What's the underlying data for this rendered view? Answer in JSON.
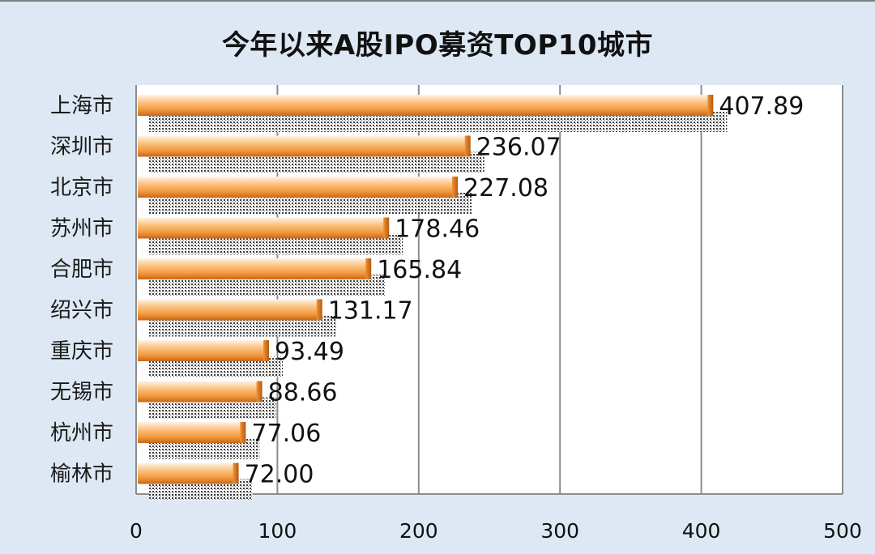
{
  "chart_data": {
    "type": "bar",
    "orientation": "horizontal",
    "title": "今年以来A股IPO募资TOP10城市",
    "categories": [
      "上海市",
      "深圳市",
      "北京市",
      "苏州市",
      "合肥市",
      "绍兴市",
      "重庆市",
      "无锡市",
      "杭州市",
      "榆林市"
    ],
    "values": [
      407.89,
      236.07,
      227.08,
      178.46,
      165.84,
      131.17,
      93.49,
      88.66,
      77.06,
      72.0
    ],
    "value_labels": [
      "407.89",
      "236.07",
      "227.08",
      "178.46",
      "165.84",
      "131.17",
      "93.49",
      "88.66",
      "77.06",
      "72.00"
    ],
    "xlim": [
      0,
      500
    ],
    "xticks": [
      0,
      100,
      200,
      300,
      400,
      500
    ],
    "xtick_labels": [
      "0",
      "100",
      "200",
      "300",
      "400",
      "500"
    ],
    "grid": "vertical",
    "legend": "none",
    "colors": {
      "bar_light": "#fde3c4",
      "bar_mid": "#f7a650",
      "bar_dark": "#d9741c",
      "background": "#dde8f4",
      "plot_area": "#ffffff",
      "grid": "#808080"
    }
  }
}
